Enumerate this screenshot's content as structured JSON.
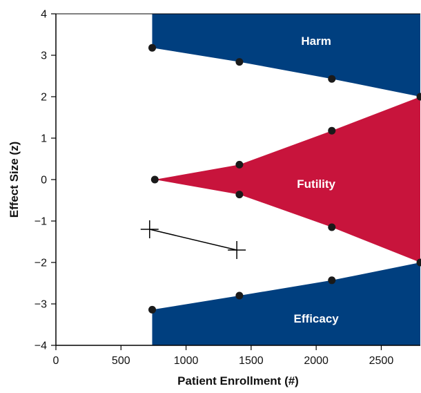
{
  "chart_data": {
    "type": "line",
    "xlabel": "Patient Enrollment (#)",
    "ylabel": "Effect Size (z)",
    "xlim": [
      0,
      2800
    ],
    "ylim": [
      -4,
      4
    ],
    "x_ticks": [
      0,
      500,
      1000,
      1500,
      2000,
      2500
    ],
    "y_ticks": [
      -4,
      -3,
      -2,
      -1,
      0,
      1,
      2,
      3,
      4
    ],
    "x_tick_labels": [
      "0",
      "500",
      "1000",
      "1500",
      "2000",
      "2500"
    ],
    "y_tick_labels": [
      "−4",
      "−3",
      "−2",
      "−1",
      "0",
      "1",
      "2",
      "3",
      "4"
    ],
    "grid": false,
    "colors": {
      "harm": "#003f7f",
      "futility": "#c8143c",
      "efficacy": "#003f7f",
      "points": "#1a1a1a",
      "trajectory": "#000000"
    },
    "regions": [
      {
        "name": "Harm",
        "label": "Harm",
        "label_at": [
          2000,
          3.35
        ],
        "boundary": [
          [
            740,
            3.18
          ],
          [
            1410,
            2.84
          ],
          [
            2120,
            2.43
          ],
          [
            2800,
            2.0
          ]
        ]
      },
      {
        "name": "Futility",
        "label": "Futility",
        "label_at": [
          2000,
          -0.1
        ],
        "upper": [
          [
            760,
            0.0
          ],
          [
            1410,
            0.36
          ],
          [
            2120,
            1.18
          ],
          [
            2800,
            2.0
          ]
        ],
        "lower": [
          [
            760,
            0.0
          ],
          [
            1410,
            -0.36
          ],
          [
            2120,
            -1.15
          ],
          [
            2800,
            -2.0
          ]
        ]
      },
      {
        "name": "Efficacy",
        "label": "Efficacy",
        "label_at": [
          2000,
          -3.35
        ],
        "boundary": [
          [
            740,
            -3.14
          ],
          [
            1410,
            -2.8
          ],
          [
            2120,
            -2.43
          ],
          [
            2800,
            -2.0
          ]
        ]
      }
    ],
    "boundary_points": [
      [
        740,
        3.18
      ],
      [
        1410,
        2.84
      ],
      [
        2120,
        2.43
      ],
      [
        2800,
        2.0
      ],
      [
        760,
        0.0
      ],
      [
        1410,
        0.36
      ],
      [
        2120,
        1.18
      ],
      [
        1410,
        -0.36
      ],
      [
        2120,
        -1.15
      ],
      [
        740,
        -3.14
      ],
      [
        1410,
        -2.8
      ],
      [
        2120,
        -2.43
      ],
      [
        2800,
        -2.0
      ]
    ],
    "trajectory": [
      [
        720,
        -1.2
      ],
      [
        1390,
        -1.7
      ]
    ]
  }
}
